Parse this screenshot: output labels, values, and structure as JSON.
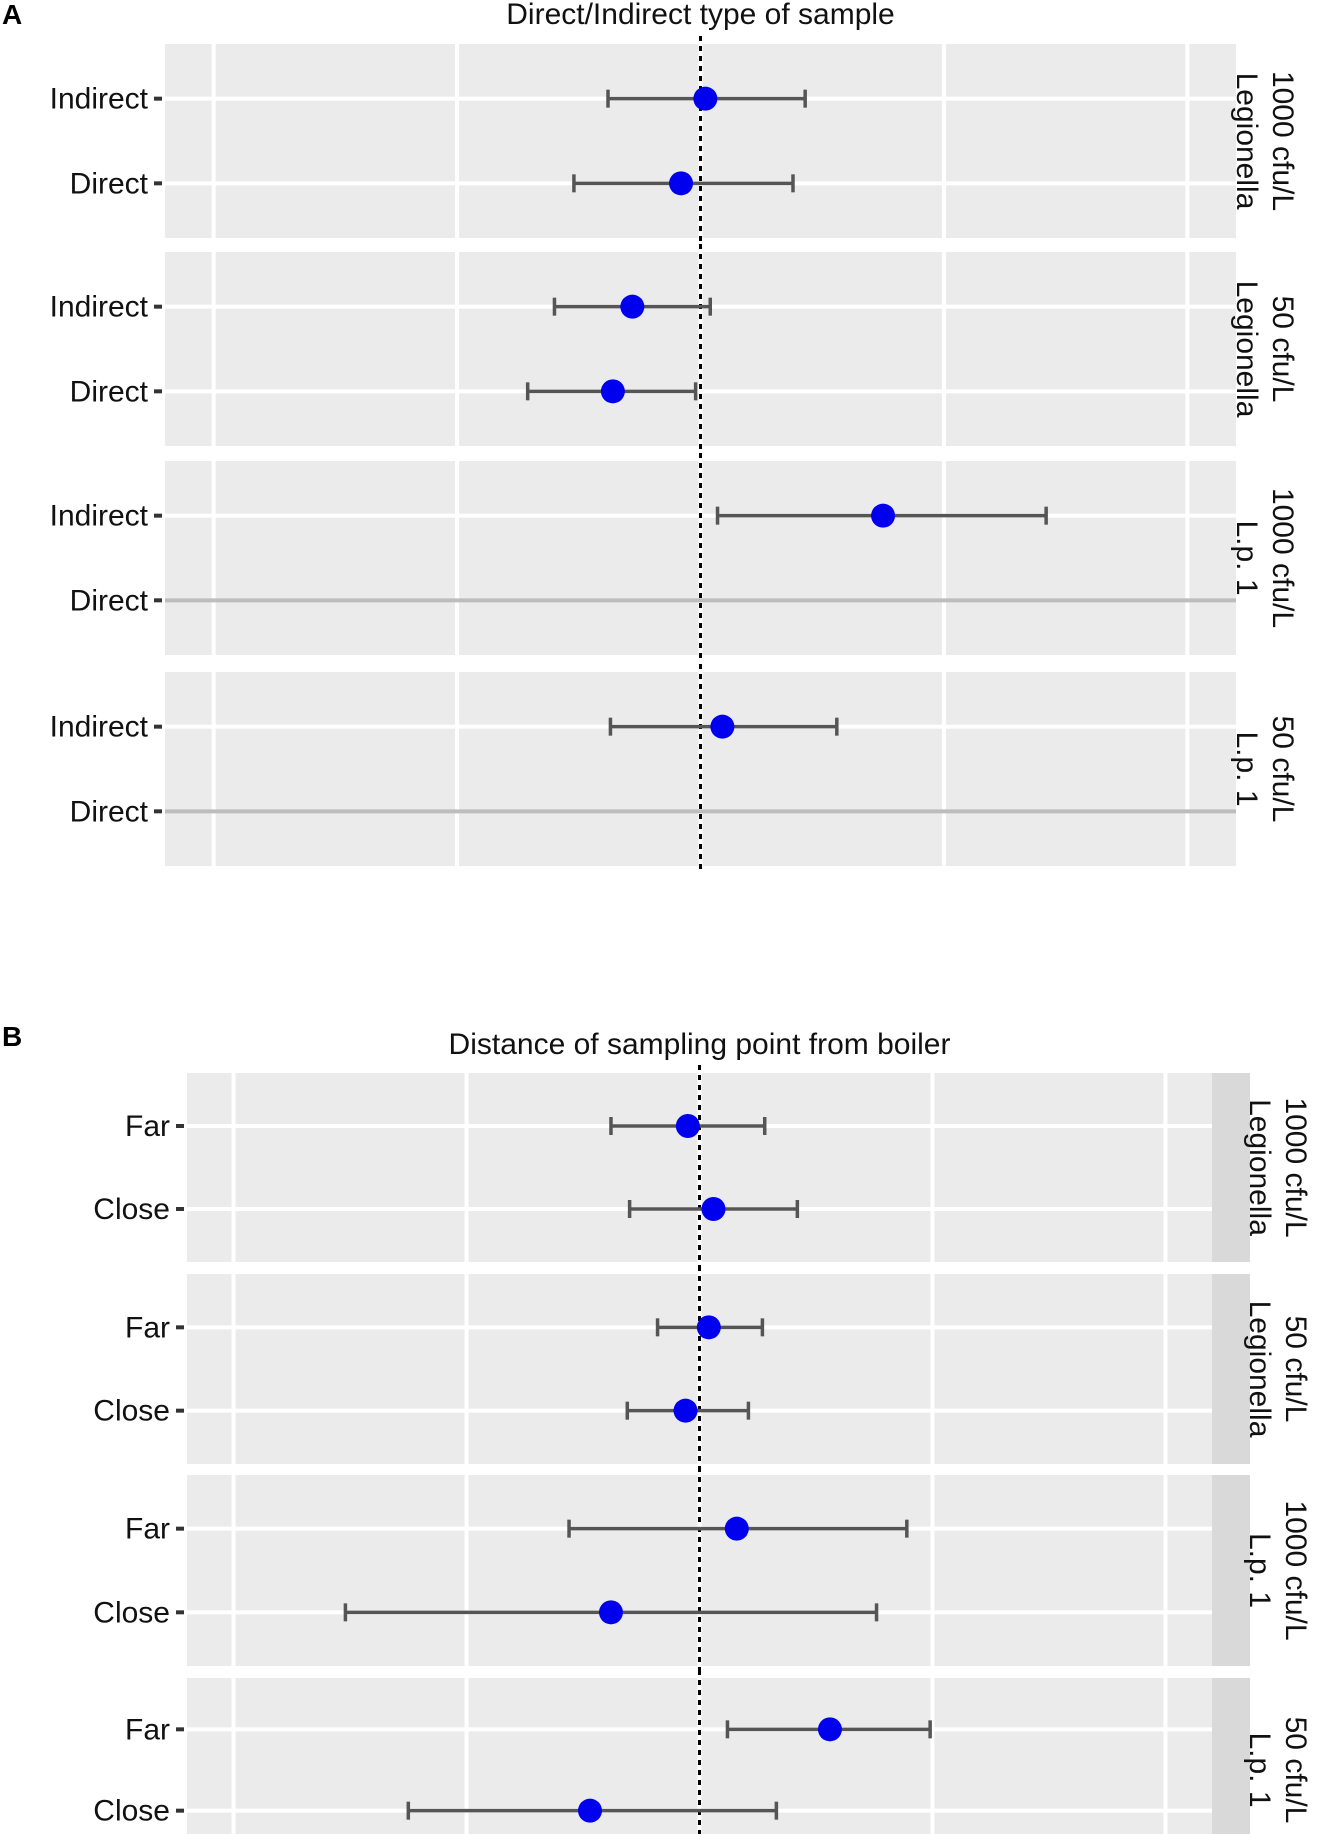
{
  "chart_data": [
    {
      "panel_label": "A",
      "type": "forest",
      "title": "Direct/Indirect type of sample",
      "xlim": [
        -2.2,
        2.2
      ],
      "reference_line": 0,
      "facets": [
        {
          "label_line1": "Legionella",
          "label_line2": "1000 cfu/L",
          "rows": [
            {
              "label": "Indirect",
              "estimate": 0.02,
              "lower": -0.38,
              "upper": 0.43
            },
            {
              "label": "Direct",
              "estimate": -0.08,
              "lower": -0.52,
              "upper": 0.38
            }
          ]
        },
        {
          "label_line1": "Legionella",
          "label_line2": "50 cfu/L",
          "rows": [
            {
              "label": "Indirect",
              "estimate": -0.28,
              "lower": -0.6,
              "upper": 0.04
            },
            {
              "label": "Direct",
              "estimate": -0.36,
              "lower": -0.71,
              "upper": -0.02
            }
          ]
        },
        {
          "label_line1": "L.p. 1",
          "label_line2": "1000 cfu/L",
          "rows": [
            {
              "label": "Indirect",
              "estimate": 0.75,
              "lower": 0.07,
              "upper": 1.42
            },
            {
              "label": "Direct",
              "estimate": null,
              "lower": null,
              "upper": null
            }
          ]
        },
        {
          "label_line1": "L.p. 1",
          "label_line2": "50 cfu/L",
          "rows": [
            {
              "label": "Indirect",
              "estimate": 0.09,
              "lower": -0.37,
              "upper": 0.56
            },
            {
              "label": "Direct",
              "estimate": null,
              "lower": null,
              "upper": null
            }
          ]
        }
      ]
    },
    {
      "panel_label": "B",
      "type": "forest",
      "title": "Distance of sampling point from boiler",
      "xlim": [
        -2.2,
        2.2
      ],
      "reference_line": 0,
      "facets": [
        {
          "label_line1": "Legionella",
          "label_line2": "1000 cfu/L",
          "rows": [
            {
              "label": "Far",
              "estimate": -0.05,
              "lower": -0.38,
              "upper": 0.28
            },
            {
              "label": "Close",
              "estimate": 0.06,
              "lower": -0.3,
              "upper": 0.42
            }
          ]
        },
        {
          "label_line1": "Legionella",
          "label_line2": "50 cfu/L",
          "rows": [
            {
              "label": "Far",
              "estimate": 0.04,
              "lower": -0.18,
              "upper": 0.27
            },
            {
              "label": "Close",
              "estimate": -0.06,
              "lower": -0.31,
              "upper": 0.21
            }
          ]
        },
        {
          "label_line1": "L.p. 1",
          "label_line2": "1000 cfu/L",
          "rows": [
            {
              "label": "Far",
              "estimate": 0.16,
              "lower": -0.56,
              "upper": 0.89
            },
            {
              "label": "Close",
              "estimate": -0.38,
              "lower": -1.52,
              "upper": 0.76
            }
          ]
        },
        {
          "label_line1": "L.p. 1",
          "label_line2": "50 cfu/L",
          "rows": [
            {
              "label": "Far",
              "estimate": 0.56,
              "lower": 0.12,
              "upper": 0.99
            },
            {
              "label": "Close",
              "estimate": -0.47,
              "lower": -1.25,
              "upper": 0.33
            }
          ]
        }
      ]
    }
  ],
  "colors": {
    "point": "#0000ee",
    "errorbar": "#555555",
    "panel_bg": "#ebebeb",
    "grid": "#ffffff",
    "empty_row": "#bdbdbd",
    "strip_bg": "#d9d9d9"
  }
}
